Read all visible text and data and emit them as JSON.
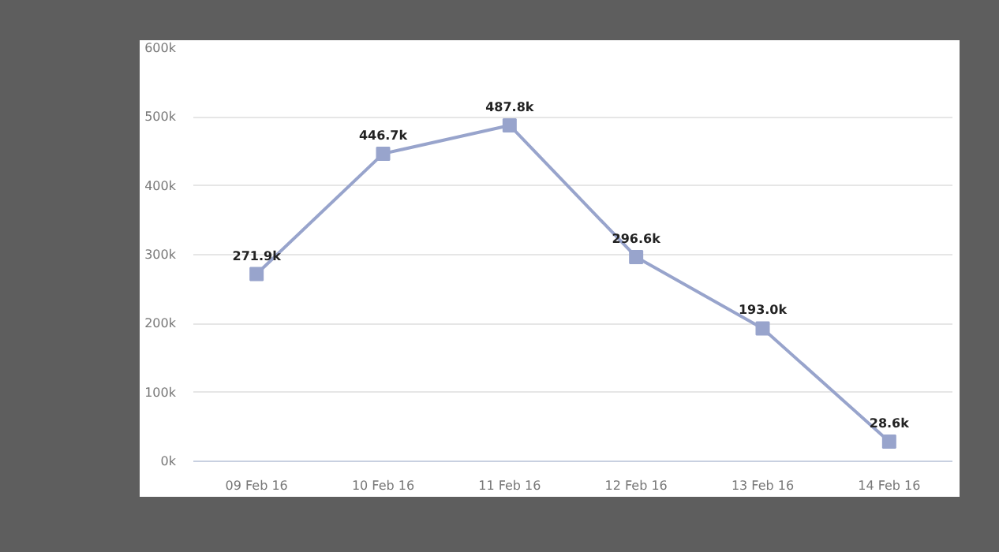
{
  "chart_data": {
    "type": "line",
    "categories": [
      "09 Feb 16",
      "10 Feb 16",
      "11 Feb 16",
      "12 Feb 16",
      "13 Feb 16",
      "14 Feb 16"
    ],
    "series": [
      {
        "color": "#98a4cc",
        "values": [
          271900,
          446700,
          487800,
          296600,
          193000,
          28600
        ],
        "value_labels": [
          "271.9k",
          "446.7k",
          "487.8k",
          "296.6k",
          "193.0k",
          "28.6k"
        ]
      }
    ],
    "ylim": [
      0,
      600000
    ],
    "yticks": [
      {
        "value": 0,
        "label": "0k"
      },
      {
        "value": 100000,
        "label": "100k"
      },
      {
        "value": 200000,
        "label": "200k"
      },
      {
        "value": 300000,
        "label": "300k"
      },
      {
        "value": 400000,
        "label": "400k"
      },
      {
        "value": 500000,
        "label": "500k"
      },
      {
        "value": 600000,
        "label": "600k"
      }
    ],
    "grid": "y",
    "marker": "square",
    "line_style": "solid"
  }
}
